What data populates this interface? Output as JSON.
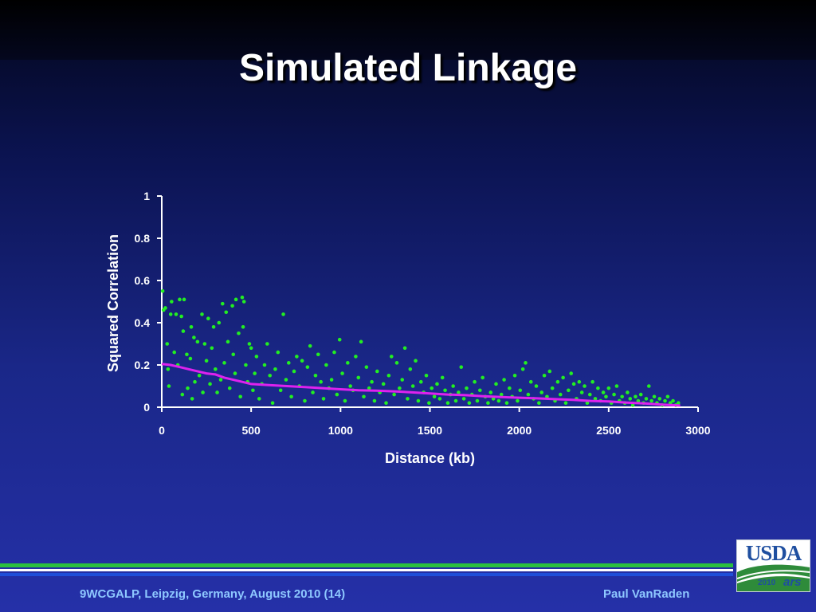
{
  "slide": {
    "title": "Simulated Linkage",
    "footer_left": "9WCGALP, Leipzig, Germany, August 2010 (14)",
    "footer_right": "Paul VanRaden",
    "logo": {
      "text": "USDA",
      "year": "2010",
      "agency": "ars"
    }
  },
  "colors": {
    "background": "#1a2788",
    "points": "#22ee22",
    "trend": "#dd22ee",
    "axis": "#ffffff",
    "footer_text": "#8ec8ff",
    "footer_green": "#2bbf3f",
    "footer_blue": "#1f4fd8"
  },
  "chart_data": {
    "type": "scatter",
    "xlabel": "Distance (kb)",
    "ylabel": "Squared Correlation",
    "xlim": [
      0,
      3000
    ],
    "ylim": [
      0,
      1
    ],
    "x_ticks": [
      "0",
      "500",
      "1000",
      "1500",
      "2000",
      "2500",
      "3000"
    ],
    "y_ticks": [
      "0",
      "0.2",
      "0.4",
      "0.6",
      "0.8",
      "1"
    ],
    "grid": false,
    "series": [
      {
        "kind": "points",
        "points": [
          [
            5,
            0.55
          ],
          [
            10,
            0.46
          ],
          [
            20,
            0.47
          ],
          [
            30,
            0.3
          ],
          [
            35,
            0.18
          ],
          [
            40,
            0.1
          ],
          [
            50,
            0.44
          ],
          [
            55,
            0.5
          ],
          [
            70,
            0.26
          ],
          [
            80,
            0.44
          ],
          [
            90,
            0.2
          ],
          [
            100,
            0.51
          ],
          [
            110,
            0.43
          ],
          [
            115,
            0.06
          ],
          [
            120,
            0.36
          ],
          [
            125,
            0.51
          ],
          [
            140,
            0.25
          ],
          [
            145,
            0.09
          ],
          [
            160,
            0.23
          ],
          [
            165,
            0.38
          ],
          [
            170,
            0.04
          ],
          [
            180,
            0.33
          ],
          [
            185,
            0.12
          ],
          [
            200,
            0.31
          ],
          [
            210,
            0.15
          ],
          [
            225,
            0.44
          ],
          [
            230,
            0.07
          ],
          [
            240,
            0.3
          ],
          [
            250,
            0.22
          ],
          [
            260,
            0.42
          ],
          [
            270,
            0.11
          ],
          [
            280,
            0.28
          ],
          [
            290,
            0.38
          ],
          [
            300,
            0.18
          ],
          [
            310,
            0.07
          ],
          [
            320,
            0.4
          ],
          [
            330,
            0.13
          ],
          [
            340,
            0.49
          ],
          [
            350,
            0.21
          ],
          [
            360,
            0.45
          ],
          [
            370,
            0.31
          ],
          [
            380,
            0.09
          ],
          [
            395,
            0.48
          ],
          [
            400,
            0.25
          ],
          [
            410,
            0.16
          ],
          [
            415,
            0.51
          ],
          [
            430,
            0.35
          ],
          [
            440,
            0.05
          ],
          [
            450,
            0.52
          ],
          [
            455,
            0.38
          ],
          [
            460,
            0.5
          ],
          [
            470,
            0.2
          ],
          [
            480,
            0.12
          ],
          [
            490,
            0.3
          ],
          [
            500,
            0.28
          ],
          [
            510,
            0.08
          ],
          [
            520,
            0.16
          ],
          [
            530,
            0.24
          ],
          [
            545,
            0.04
          ],
          [
            560,
            0.11
          ],
          [
            575,
            0.2
          ],
          [
            590,
            0.3
          ],
          [
            605,
            0.15
          ],
          [
            620,
            0.02
          ],
          [
            635,
            0.18
          ],
          [
            650,
            0.26
          ],
          [
            665,
            0.08
          ],
          [
            680,
            0.44
          ],
          [
            695,
            0.13
          ],
          [
            710,
            0.21
          ],
          [
            725,
            0.05
          ],
          [
            740,
            0.17
          ],
          [
            755,
            0.24
          ],
          [
            770,
            0.1
          ],
          [
            785,
            0.22
          ],
          [
            800,
            0.03
          ],
          [
            815,
            0.19
          ],
          [
            830,
            0.29
          ],
          [
            845,
            0.07
          ],
          [
            860,
            0.15
          ],
          [
            875,
            0.25
          ],
          [
            890,
            0.12
          ],
          [
            905,
            0.04
          ],
          [
            920,
            0.2
          ],
          [
            935,
            0.09
          ],
          [
            950,
            0.13
          ],
          [
            965,
            0.26
          ],
          [
            980,
            0.06
          ],
          [
            995,
            0.32
          ],
          [
            1010,
            0.16
          ],
          [
            1025,
            0.03
          ],
          [
            1040,
            0.21
          ],
          [
            1055,
            0.1
          ],
          [
            1070,
            0.08
          ],
          [
            1085,
            0.24
          ],
          [
            1100,
            0.14
          ],
          [
            1115,
            0.31
          ],
          [
            1130,
            0.05
          ],
          [
            1145,
            0.19
          ],
          [
            1160,
            0.09
          ],
          [
            1175,
            0.12
          ],
          [
            1190,
            0.03
          ],
          [
            1205,
            0.17
          ],
          [
            1220,
            0.07
          ],
          [
            1240,
            0.11
          ],
          [
            1255,
            0.02
          ],
          [
            1270,
            0.15
          ],
          [
            1285,
            0.24
          ],
          [
            1300,
            0.06
          ],
          [
            1315,
            0.21
          ],
          [
            1330,
            0.09
          ],
          [
            1345,
            0.13
          ],
          [
            1360,
            0.28
          ],
          [
            1375,
            0.04
          ],
          [
            1390,
            0.18
          ],
          [
            1405,
            0.1
          ],
          [
            1420,
            0.22
          ],
          [
            1435,
            0.03
          ],
          [
            1450,
            0.12
          ],
          [
            1465,
            0.07
          ],
          [
            1480,
            0.15
          ],
          [
            1495,
            0.02
          ],
          [
            1510,
            0.09
          ],
          [
            1525,
            0.05
          ],
          [
            1540,
            0.11
          ],
          [
            1555,
            0.04
          ],
          [
            1570,
            0.14
          ],
          [
            1585,
            0.08
          ],
          [
            1600,
            0.02
          ],
          [
            1615,
            0.06
          ],
          [
            1630,
            0.1
          ],
          [
            1645,
            0.03
          ],
          [
            1660,
            0.07
          ],
          [
            1675,
            0.19
          ],
          [
            1690,
            0.04
          ],
          [
            1705,
            0.09
          ],
          [
            1720,
            0.02
          ],
          [
            1735,
            0.06
          ],
          [
            1750,
            0.12
          ],
          [
            1765,
            0.03
          ],
          [
            1780,
            0.08
          ],
          [
            1795,
            0.14
          ],
          [
            1810,
            0.05
          ],
          [
            1825,
            0.02
          ],
          [
            1840,
            0.07
          ],
          [
            1855,
            0.04
          ],
          [
            1870,
            0.11
          ],
          [
            1885,
            0.03
          ],
          [
            1900,
            0.06
          ],
          [
            1915,
            0.13
          ],
          [
            1930,
            0.02
          ],
          [
            1945,
            0.09
          ],
          [
            1960,
            0.05
          ],
          [
            1975,
            0.15
          ],
          [
            1990,
            0.03
          ],
          [
            2005,
            0.08
          ],
          [
            2020,
            0.18
          ],
          [
            2035,
            0.21
          ],
          [
            2050,
            0.06
          ],
          [
            2065,
            0.12
          ],
          [
            2080,
            0.04
          ],
          [
            2095,
            0.1
          ],
          [
            2110,
            0.02
          ],
          [
            2125,
            0.07
          ],
          [
            2140,
            0.15
          ],
          [
            2155,
            0.05
          ],
          [
            2170,
            0.17
          ],
          [
            2185,
            0.09
          ],
          [
            2200,
            0.03
          ],
          [
            2215,
            0.12
          ],
          [
            2230,
            0.06
          ],
          [
            2245,
            0.14
          ],
          [
            2260,
            0.02
          ],
          [
            2275,
            0.08
          ],
          [
            2290,
            0.16
          ],
          [
            2305,
            0.11
          ],
          [
            2320,
            0.04
          ],
          [
            2335,
            0.12
          ],
          [
            2350,
            0.07
          ],
          [
            2365,
            0.1
          ],
          [
            2380,
            0.02
          ],
          [
            2395,
            0.06
          ],
          [
            2410,
            0.12
          ],
          [
            2425,
            0.04
          ],
          [
            2440,
            0.09
          ],
          [
            2455,
            0.03
          ],
          [
            2470,
            0.07
          ],
          [
            2485,
            0.05
          ],
          [
            2500,
            0.09
          ],
          [
            2515,
            0.02
          ],
          [
            2530,
            0.06
          ],
          [
            2545,
            0.1
          ],
          [
            2560,
            0.03
          ],
          [
            2575,
            0.05
          ],
          [
            2590,
            0.02
          ],
          [
            2605,
            0.07
          ],
          [
            2620,
            0.04
          ],
          [
            2635,
            0.01
          ],
          [
            2650,
            0.05
          ],
          [
            2665,
            0.03
          ],
          [
            2680,
            0.06
          ],
          [
            2695,
            0.02
          ],
          [
            2710,
            0.04
          ],
          [
            2725,
            0.1
          ],
          [
            2740,
            0.03
          ],
          [
            2755,
            0.05
          ],
          [
            2770,
            0.02
          ],
          [
            2785,
            0.04
          ],
          [
            2800,
            0.01
          ],
          [
            2815,
            0.03
          ],
          [
            2830,
            0.05
          ],
          [
            2845,
            0.02
          ],
          [
            2860,
            0.03
          ],
          [
            2875,
            0.01
          ],
          [
            2890,
            0.02
          ]
        ]
      },
      {
        "kind": "line",
        "points": [
          [
            0,
            0.205
          ],
          [
            50,
            0.2
          ],
          [
            100,
            0.19
          ],
          [
            150,
            0.18
          ],
          [
            200,
            0.17
          ],
          [
            250,
            0.16
          ],
          [
            300,
            0.155
          ],
          [
            350,
            0.14
          ],
          [
            400,
            0.13
          ],
          [
            450,
            0.12
          ],
          [
            500,
            0.11
          ],
          [
            600,
            0.105
          ],
          [
            700,
            0.1
          ],
          [
            800,
            0.095
          ],
          [
            900,
            0.09
          ],
          [
            1000,
            0.085
          ],
          [
            1100,
            0.08
          ],
          [
            1200,
            0.078
          ],
          [
            1300,
            0.075
          ],
          [
            1400,
            0.07
          ],
          [
            1500,
            0.065
          ],
          [
            1600,
            0.06
          ],
          [
            1700,
            0.057
          ],
          [
            1800,
            0.052
          ],
          [
            1900,
            0.048
          ],
          [
            2000,
            0.045
          ],
          [
            2100,
            0.042
          ],
          [
            2200,
            0.038
          ],
          [
            2300,
            0.035
          ],
          [
            2400,
            0.03
          ],
          [
            2500,
            0.027
          ],
          [
            2600,
            0.022
          ],
          [
            2700,
            0.018
          ],
          [
            2800,
            0.012
          ],
          [
            2900,
            0.008
          ]
        ]
      }
    ]
  }
}
